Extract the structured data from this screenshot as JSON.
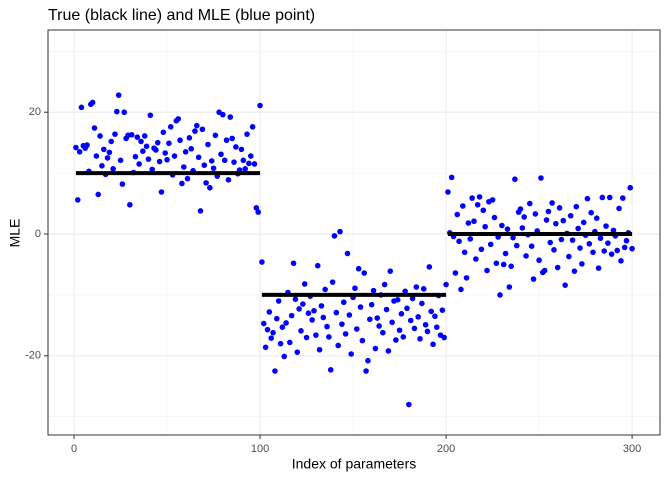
{
  "chart_data": {
    "type": "scatter",
    "title": "True (black line) and MLE (blue point)",
    "xlabel": "Index of parameters",
    "ylabel": "MLE",
    "xlim": [
      -14,
      315
    ],
    "ylim": [
      -33,
      33.5
    ],
    "xticks": [
      0,
      100,
      200,
      300
    ],
    "yticks": [
      -20,
      0,
      20
    ],
    "xminorticks": [
      50,
      150,
      250
    ],
    "yminorticks": [
      -30,
      -10,
      10,
      30
    ],
    "grid": true,
    "segments_color": "#000000",
    "segments": [
      {
        "x": [
          1,
          100
        ],
        "y": 10
      },
      {
        "x": [
          101,
          200
        ],
        "y": -10
      },
      {
        "x": [
          201,
          300
        ],
        "y": 0
      }
    ],
    "series": [
      {
        "color": "#0000ff",
        "x": [
          1,
          2,
          3,
          4,
          5,
          6,
          7,
          8,
          9,
          10,
          11,
          12,
          13,
          14,
          15,
          16,
          17,
          18,
          19,
          20,
          21,
          22,
          23,
          24,
          25,
          26,
          27,
          28,
          29,
          30,
          31,
          32,
          33,
          34,
          35,
          36,
          37,
          38,
          39,
          40,
          41,
          42,
          43,
          44,
          45,
          46,
          47,
          48,
          49,
          50,
          51,
          52,
          53,
          54,
          55,
          56,
          57,
          58,
          59,
          60,
          61,
          62,
          63,
          64,
          65,
          66,
          67,
          68,
          69,
          70,
          71,
          72,
          73,
          74,
          75,
          76,
          77,
          78,
          79,
          80,
          81,
          82,
          83,
          84,
          85,
          86,
          87,
          88,
          89,
          90,
          91,
          92,
          93,
          94,
          95,
          96,
          97,
          98,
          99,
          100,
          101,
          102,
          103,
          104,
          105,
          106,
          107,
          108,
          109,
          110,
          111,
          112,
          113,
          114,
          115,
          116,
          117,
          118,
          119,
          120,
          121,
          122,
          123,
          124,
          125,
          126,
          127,
          128,
          129,
          130,
          131,
          132,
          133,
          134,
          135,
          136,
          137,
          138,
          139,
          140,
          141,
          142,
          143,
          144,
          145,
          146,
          147,
          148,
          149,
          150,
          151,
          152,
          153,
          154,
          155,
          156,
          157,
          158,
          159,
          160,
          161,
          162,
          163,
          164,
          165,
          166,
          167,
          168,
          169,
          170,
          171,
          172,
          173,
          174,
          175,
          176,
          177,
          178,
          179,
          180,
          181,
          182,
          183,
          184,
          185,
          186,
          187,
          188,
          189,
          190,
          191,
          192,
          193,
          194,
          195,
          196,
          197,
          198,
          199,
          200,
          201,
          202,
          203,
          204,
          205,
          206,
          207,
          208,
          209,
          210,
          211,
          212,
          213,
          214,
          215,
          216,
          217,
          218,
          219,
          220,
          221,
          222,
          223,
          224,
          225,
          226,
          227,
          228,
          229,
          230,
          231,
          232,
          233,
          234,
          235,
          236,
          237,
          238,
          239,
          240,
          241,
          242,
          243,
          244,
          245,
          246,
          247,
          248,
          249,
          250,
          251,
          252,
          253,
          254,
          255,
          256,
          257,
          258,
          259,
          260,
          261,
          262,
          263,
          264,
          265,
          266,
          267,
          268,
          269,
          270,
          271,
          272,
          273,
          274,
          275,
          276,
          277,
          278,
          279,
          280,
          281,
          282,
          283,
          284,
          285,
          286,
          287,
          288,
          289,
          290,
          291,
          292,
          293,
          294,
          295,
          296,
          297,
          298,
          299,
          300
        ],
        "values": [
          14.2,
          5.6,
          13.5,
          20.8,
          14.5,
          14.1,
          14.6,
          10.3,
          21.3,
          21.6,
          17.4,
          12.8,
          6.5,
          16.1,
          11.2,
          13.9,
          9.8,
          12.5,
          13.4,
          15.2,
          10.7,
          16.4,
          20.1,
          22.8,
          12.1,
          8.2,
          20.0,
          15.7,
          16.2,
          4.8,
          16.3,
          10.1,
          12.7,
          15.9,
          11.5,
          15.2,
          13.6,
          16.1,
          14.4,
          12.3,
          19.5,
          10.6,
          14.1,
          13.8,
          15.0,
          11.9,
          6.9,
          16.7,
          13.3,
          12.2,
          14.9,
          17.6,
          9.7,
          12.8,
          18.6,
          18.9,
          15.4,
          8.3,
          11.0,
          13.5,
          9.1,
          15.8,
          14.0,
          10.4,
          16.9,
          17.8,
          12.6,
          3.8,
          17.2,
          11.3,
          8.4,
          14.7,
          7.6,
          12.0,
          10.8,
          16.2,
          9.5,
          20.0,
          13.1,
          19.6,
          12.1,
          15.4,
          8.9,
          19.2,
          15.7,
          11.8,
          14.3,
          9.9,
          10.5,
          13.9,
          12.1,
          10.7,
          16.4,
          11.6,
          12.8,
          17.6,
          11.5,
          4.3,
          3.6,
          21.1,
          -4.6,
          -14.7,
          -18.6,
          -15.7,
          -12.8,
          -17.1,
          -16.2,
          -22.5,
          -13.9,
          -11.0,
          -18.0,
          -15.3,
          -20.1,
          -14.6,
          -9.6,
          -17.8,
          -13.4,
          -4.8,
          -10.7,
          -19.4,
          -12.3,
          -15.9,
          -11.5,
          -8.2,
          -17.0,
          -13.0,
          -10.2,
          -14.1,
          -12.6,
          -16.6,
          -5.2,
          -19.0,
          -11.8,
          -13.7,
          -9.1,
          -15.2,
          -16.9,
          -22.3,
          -7.9,
          -0.3,
          -12.9,
          -18.3,
          0.4,
          -14.8,
          -11.2,
          -16.4,
          -3.2,
          -13.3,
          -19.7,
          -10.4,
          -8.9,
          -15.6,
          -5.7,
          -12.0,
          -17.5,
          -6.4,
          -22.5,
          -20.8,
          -14.0,
          -11.6,
          -9.3,
          -18.8,
          -13.8,
          -15.1,
          -10.0,
          -16.2,
          -8.3,
          -12.4,
          -19.2,
          -6.1,
          -14.5,
          -11.0,
          -17.4,
          -10.8,
          -15.8,
          -13.1,
          -16.9,
          -9.4,
          -12.2,
          -28.0,
          -14.2,
          -10.6,
          -15.5,
          -8.7,
          -13.6,
          -17.2,
          -11.4,
          -9.0,
          -14.9,
          -16.0,
          -5.4,
          -12.7,
          -18.1,
          -13.5,
          -15.3,
          -10.1,
          -16.6,
          -12.5,
          -17.0,
          -8.3,
          6.9,
          0.2,
          9.3,
          -0.4,
          -6.4,
          3.2,
          -1.2,
          -9.1,
          4.6,
          -3.0,
          -7.2,
          1.8,
          -0.8,
          5.9,
          2.1,
          -4.1,
          4.8,
          6.1,
          -2.5,
          3.9,
          1.2,
          -6.0,
          5.3,
          -1.7,
          5.6,
          2.7,
          -4.8,
          -0.5,
          -10.0,
          1.4,
          -5.0,
          -3.2,
          0.8,
          -8.7,
          -5.3,
          -0.6,
          9.0,
          -1.9,
          3.6,
          4.1,
          1.0,
          2.8,
          -3.6,
          -0.1,
          5.0,
          -2.0,
          -7.4,
          3.3,
          0.5,
          -4.3,
          9.2,
          -6.3,
          -6.0,
          2.3,
          3.7,
          -1.4,
          5.1,
          -2.6,
          1.7,
          -5.5,
          4.3,
          -0.9,
          2.2,
          -8.4,
          0.1,
          -3.7,
          3.0,
          -1.0,
          -6.1,
          4.5,
          0.9,
          -2.3,
          -4.9,
          1.9,
          -0.2,
          5.8,
          -1.6,
          3.5,
          -3.0,
          0.4,
          2.6,
          -5.6,
          -0.7,
          6.0,
          -2.8,
          1.3,
          -1.5,
          6.0,
          -3.3,
          0.6,
          -0.3,
          -2.7,
          4.2,
          -4.4,
          5.9,
          -2.2,
          -1.1,
          0.2,
          7.6,
          -2.4
        ]
      }
    ]
  }
}
